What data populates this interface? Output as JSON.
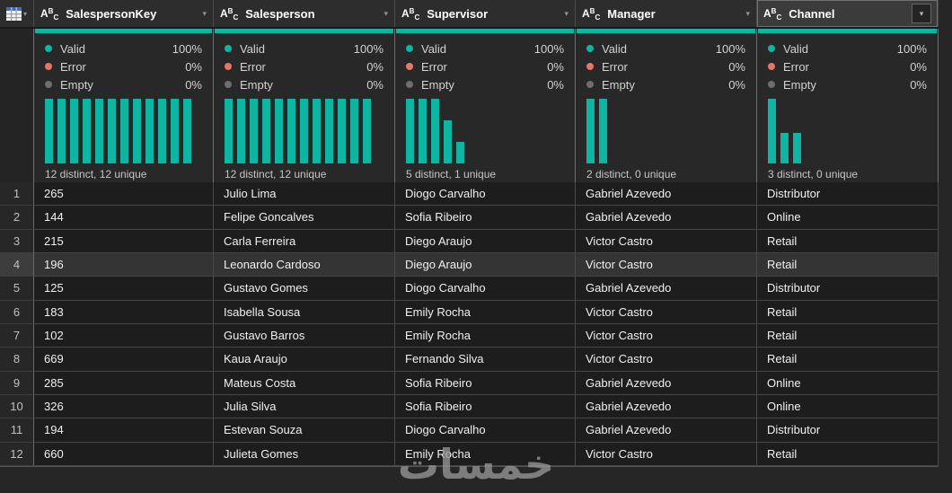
{
  "app": {
    "accent_color": "#0db5a2",
    "error_color": "#e87568",
    "empty_color": "#6e6e6e"
  },
  "corner": {
    "icon": "table-grid-icon"
  },
  "columns": [
    {
      "name": "SalespersonKey",
      "type_icon": "ABC",
      "selected": false,
      "stats": {
        "valid_label": "Valid",
        "valid_pct": "100%",
        "error_label": "Error",
        "error_pct": "0%",
        "empty_label": "Empty",
        "empty_pct": "0%"
      },
      "distribution": [
        1,
        1,
        1,
        1,
        1,
        1,
        1,
        1,
        1,
        1,
        1,
        1
      ],
      "distinct_label": "12 distinct, 12 unique"
    },
    {
      "name": "Salesperson",
      "type_icon": "ABC",
      "selected": false,
      "stats": {
        "valid_label": "Valid",
        "valid_pct": "100%",
        "error_label": "Error",
        "error_pct": "0%",
        "empty_label": "Empty",
        "empty_pct": "0%"
      },
      "distribution": [
        1,
        1,
        1,
        1,
        1,
        1,
        1,
        1,
        1,
        1,
        1,
        1
      ],
      "distinct_label": "12 distinct, 12 unique"
    },
    {
      "name": "Supervisor",
      "type_icon": "ABC",
      "selected": false,
      "stats": {
        "valid_label": "Valid",
        "valid_pct": "100%",
        "error_label": "Error",
        "error_pct": "0%",
        "empty_label": "Empty",
        "empty_pct": "0%"
      },
      "distribution": [
        1,
        1,
        1,
        0.66,
        0.33
      ],
      "distinct_label": "5 distinct, 1 unique"
    },
    {
      "name": "Manager",
      "type_icon": "ABC",
      "selected": false,
      "stats": {
        "valid_label": "Valid",
        "valid_pct": "100%",
        "error_label": "Error",
        "error_pct": "0%",
        "empty_label": "Empty",
        "empty_pct": "0%"
      },
      "distribution": [
        1,
        1
      ],
      "distinct_label": "2 distinct, 0 unique"
    },
    {
      "name": "Channel",
      "type_icon": "ABC",
      "selected": true,
      "stats": {
        "valid_label": "Valid",
        "valid_pct": "100%",
        "error_label": "Error",
        "error_pct": "0%",
        "empty_label": "Empty",
        "empty_pct": "0%"
      },
      "distribution": [
        1,
        0.47,
        0.47
      ],
      "distinct_label": "3 distinct, 0 unique"
    }
  ],
  "rows": [
    {
      "num": "1",
      "selected": false,
      "cells": [
        "265",
        "Julio Lima",
        "Diogo Carvalho",
        "Gabriel Azevedo",
        "Distributor"
      ]
    },
    {
      "num": "2",
      "selected": false,
      "cells": [
        "144",
        "Felipe Goncalves",
        "Sofia Ribeiro",
        "Gabriel Azevedo",
        "Online"
      ]
    },
    {
      "num": "3",
      "selected": false,
      "cells": [
        "215",
        "Carla Ferreira",
        "Diego Araujo",
        "Victor Castro",
        "Retail"
      ]
    },
    {
      "num": "4",
      "selected": true,
      "cells": [
        "196",
        "Leonardo Cardoso",
        "Diego Araujo",
        "Victor Castro",
        "Retail"
      ]
    },
    {
      "num": "5",
      "selected": false,
      "cells": [
        "125",
        "Gustavo Gomes",
        "Diogo Carvalho",
        "Gabriel Azevedo",
        "Distributor"
      ]
    },
    {
      "num": "6",
      "selected": false,
      "cells": [
        "183",
        "Isabella Sousa",
        "Emily Rocha",
        "Victor Castro",
        "Retail"
      ]
    },
    {
      "num": "7",
      "selected": false,
      "cells": [
        "102",
        "Gustavo Barros",
        "Emily Rocha",
        "Victor Castro",
        "Retail"
      ]
    },
    {
      "num": "8",
      "selected": false,
      "cells": [
        "669",
        "Kaua Araujo",
        "Fernando Silva",
        "Victor Castro",
        "Retail"
      ]
    },
    {
      "num": "9",
      "selected": false,
      "cells": [
        "285",
        "Mateus Costa",
        "Sofia Ribeiro",
        "Gabriel Azevedo",
        "Online"
      ]
    },
    {
      "num": "10",
      "selected": false,
      "cells": [
        "326",
        "Julia Silva",
        "Sofia Ribeiro",
        "Gabriel Azevedo",
        "Online"
      ]
    },
    {
      "num": "11",
      "selected": false,
      "cells": [
        "194",
        "Estevan Souza",
        "Diogo Carvalho",
        "Gabriel Azevedo",
        "Distributor"
      ]
    },
    {
      "num": "12",
      "selected": false,
      "cells": [
        "660",
        "Julieta Gomes",
        "Emily Rocha",
        "Victor Castro",
        "Retail"
      ]
    }
  ],
  "watermark": {
    "text": "خمسات"
  }
}
